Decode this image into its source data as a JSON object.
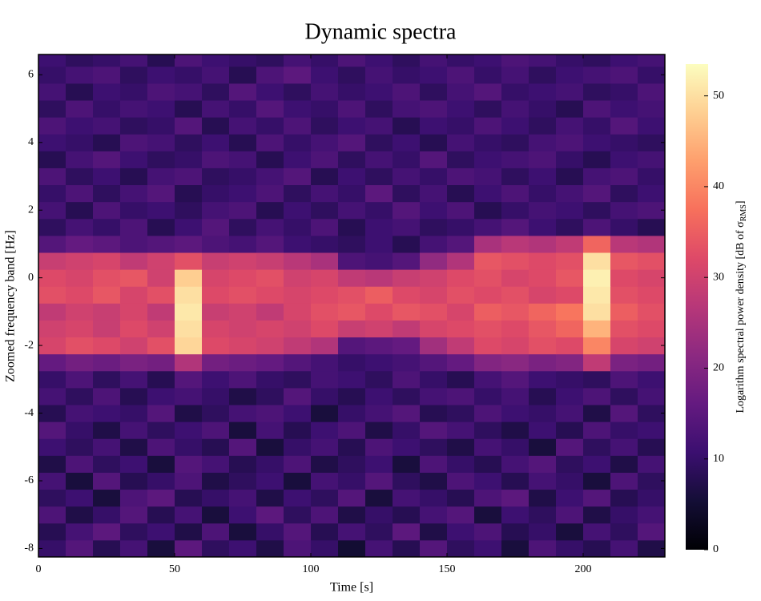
{
  "chart_data": {
    "type": "heatmap",
    "title": "Dynamic spectra",
    "x_label": "Time [s]",
    "y_label": "Zoomed frequency band [Hz]",
    "colorbar_label": {
      "text": "Logarithm spectral power density [dB of σ",
      "subscript": "RMS",
      "end": "]"
    },
    "colormap": "magma",
    "zlim": [
      0,
      53.5
    ],
    "zticks": [
      0,
      10,
      20,
      30,
      40,
      50
    ],
    "xlim": [
      0,
      230
    ],
    "xticks": [
      0,
      50,
      100,
      150,
      200
    ],
    "ylim": [
      -8.25,
      6.6
    ],
    "yticks": [
      -8,
      -6,
      -4,
      -2,
      0,
      2,
      4,
      6
    ],
    "x_edges": [
      0,
      10,
      20,
      30,
      40,
      50,
      60,
      70,
      80,
      90,
      100,
      110,
      120,
      130,
      140,
      150,
      160,
      170,
      180,
      190,
      200,
      210,
      220,
      230
    ],
    "y_edges": [
      -8.25,
      -7.75,
      -7.25,
      -6.75,
      -6.25,
      -5.75,
      -5.25,
      -4.75,
      -4.25,
      -3.75,
      -3.25,
      -2.75,
      -2.25,
      -1.75,
      -1.25,
      -0.75,
      -0.25,
      0.25,
      0.75,
      1.25,
      1.75,
      2.25,
      2.75,
      3.25,
      3.75,
      4.25,
      4.75,
      5.25,
      5.75,
      6.25,
      6.75
    ],
    "z": [
      [
        10,
        14,
        8,
        12,
        6,
        15,
        9,
        11,
        7,
        13,
        10,
        5,
        12,
        8,
        14,
        9,
        11,
        6,
        13,
        10,
        8,
        12,
        7
      ],
      [
        8,
        12,
        15,
        9,
        11,
        7,
        13,
        6,
        10,
        14,
        8,
        12,
        9,
        15,
        7,
        11,
        13,
        8,
        10,
        6,
        12,
        9,
        14
      ],
      [
        13,
        7,
        10,
        14,
        8,
        12,
        6,
        11,
        15,
        9,
        13,
        7,
        10,
        8,
        12,
        14,
        6,
        11,
        9,
        13,
        7,
        10,
        12
      ],
      [
        9,
        11,
        6,
        13,
        15,
        8,
        10,
        12,
        7,
        11,
        9,
        14,
        6,
        12,
        10,
        8,
        13,
        15,
        7,
        11,
        14,
        8,
        10
      ],
      [
        12,
        6,
        14,
        8,
        10,
        13,
        7,
        9,
        11,
        6,
        12,
        10,
        14,
        9,
        7,
        13,
        11,
        8,
        12,
        10,
        6,
        13,
        9
      ],
      [
        7,
        13,
        9,
        11,
        6,
        14,
        12,
        8,
        10,
        13,
        7,
        9,
        11,
        6,
        13,
        10,
        8,
        12,
        14,
        9,
        11,
        7,
        12
      ],
      [
        11,
        9,
        12,
        7,
        13,
        10,
        8,
        14,
        6,
        10,
        12,
        8,
        13,
        11,
        9,
        7,
        12,
        10,
        6,
        14,
        9,
        12,
        8
      ],
      [
        14,
        10,
        7,
        12,
        9,
        11,
        13,
        6,
        12,
        8,
        11,
        13,
        7,
        10,
        14,
        12,
        9,
        7,
        11,
        8,
        13,
        10,
        11
      ],
      [
        8,
        12,
        11,
        10,
        14,
        7,
        9,
        12,
        13,
        11,
        6,
        10,
        12,
        14,
        8,
        9,
        13,
        11,
        10,
        12,
        7,
        14,
        9
      ],
      [
        12,
        9,
        13,
        8,
        11,
        12,
        10,
        7,
        9,
        14,
        10,
        8,
        11,
        9,
        12,
        13,
        10,
        12,
        8,
        11,
        13,
        9,
        12
      ],
      [
        10,
        13,
        9,
        12,
        8,
        14,
        11,
        13,
        10,
        9,
        12,
        11,
        9,
        13,
        10,
        8,
        12,
        14,
        11,
        10,
        9,
        13,
        11
      ],
      [
        16,
        18,
        17,
        19,
        18,
        26,
        18,
        17,
        16,
        14,
        12,
        10,
        11,
        12,
        14,
        16,
        20,
        21,
        19,
        20,
        28,
        19,
        18
      ],
      [
        31,
        33,
        32,
        30,
        33,
        49,
        32,
        31,
        30,
        28,
        26,
        14,
        15,
        16,
        24,
        28,
        32,
        31,
        33,
        32,
        40,
        31,
        30
      ],
      [
        30,
        31,
        29,
        32,
        30,
        50,
        31,
        30,
        31,
        30,
        32,
        29,
        30,
        28,
        31,
        32,
        33,
        32,
        34,
        36,
        45,
        33,
        32
      ],
      [
        28,
        30,
        29,
        31,
        28,
        51,
        29,
        30,
        28,
        31,
        33,
        34,
        32,
        34,
        33,
        31,
        35,
        34,
        36,
        38,
        50,
        35,
        33
      ],
      [
        33,
        32,
        34,
        31,
        33,
        50,
        32,
        33,
        32,
        31,
        32,
        33,
        35,
        32,
        31,
        33,
        32,
        33,
        31,
        32,
        51,
        33,
        32
      ],
      [
        32,
        31,
        33,
        34,
        30,
        48,
        31,
        32,
        33,
        30,
        31,
        28,
        27,
        29,
        30,
        32,
        33,
        31,
        32,
        34,
        52,
        32,
        31
      ],
      [
        29,
        30,
        31,
        28,
        30,
        33,
        29,
        30,
        29,
        27,
        25,
        13,
        12,
        14,
        22,
        26,
        34,
        33,
        32,
        33,
        50,
        34,
        33
      ],
      [
        14,
        16,
        15,
        13,
        14,
        15,
        13,
        12,
        14,
        11,
        10,
        9,
        11,
        8,
        12,
        14,
        25,
        27,
        26,
        28,
        36,
        27,
        26
      ],
      [
        9,
        12,
        10,
        13,
        8,
        11,
        14,
        9,
        12,
        10,
        13,
        8,
        11,
        12,
        9,
        10,
        12,
        14,
        11,
        9,
        13,
        10,
        8
      ],
      [
        12,
        8,
        13,
        10,
        11,
        9,
        12,
        13,
        8,
        11,
        9,
        12,
        10,
        14,
        11,
        13,
        8,
        10,
        12,
        11,
        9,
        12,
        13
      ],
      [
        10,
        13,
        9,
        12,
        14,
        8,
        10,
        11,
        13,
        9,
        12,
        10,
        15,
        9,
        12,
        8,
        11,
        13,
        10,
        12,
        14,
        9,
        11
      ],
      [
        13,
        9,
        11,
        8,
        12,
        13,
        9,
        10,
        12,
        14,
        8,
        11,
        9,
        12,
        10,
        13,
        12,
        9,
        11,
        8,
        12,
        13,
        10
      ],
      [
        8,
        12,
        14,
        11,
        9,
        10,
        13,
        12,
        8,
        11,
        13,
        9,
        12,
        10,
        14,
        9,
        11,
        12,
        13,
        10,
        8,
        11,
        12
      ],
      [
        11,
        10,
        8,
        13,
        12,
        9,
        11,
        8,
        13,
        10,
        12,
        14,
        9,
        11,
        8,
        12,
        10,
        9,
        12,
        13,
        11,
        10,
        9
      ],
      [
        13,
        11,
        12,
        9,
        10,
        14,
        8,
        12,
        10,
        13,
        9,
        11,
        12,
        8,
        11,
        10,
        13,
        11,
        9,
        12,
        10,
        14,
        11
      ],
      [
        9,
        13,
        10,
        12,
        11,
        8,
        12,
        10,
        14,
        11,
        10,
        13,
        9,
        12,
        13,
        11,
        9,
        12,
        10,
        8,
        13,
        11,
        12
      ],
      [
        12,
        8,
        11,
        10,
        13,
        12,
        9,
        14,
        11,
        9,
        12,
        10,
        11,
        13,
        9,
        12,
        14,
        10,
        11,
        12,
        9,
        10,
        13
      ],
      [
        10,
        12,
        13,
        9,
        11,
        10,
        12,
        8,
        13,
        15,
        11,
        9,
        12,
        10,
        11,
        13,
        10,
        12,
        9,
        11,
        12,
        13,
        10
      ],
      [
        11,
        9,
        10,
        12,
        8,
        13,
        11,
        10,
        9,
        12,
        10,
        13,
        11,
        9,
        12,
        10,
        11,
        13,
        12,
        10,
        9,
        11,
        12
      ]
    ]
  }
}
